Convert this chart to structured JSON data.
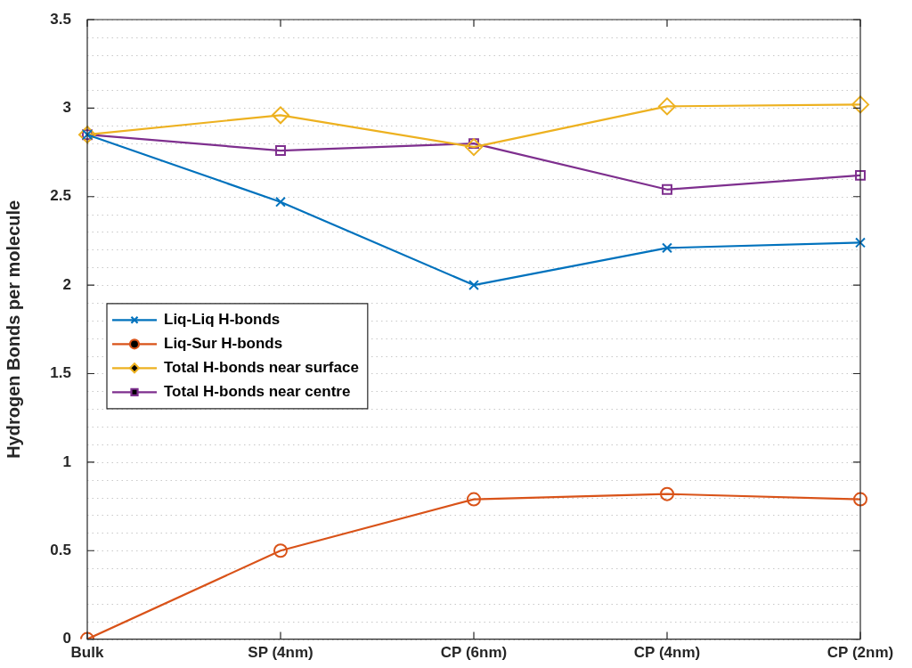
{
  "chart_data": {
    "type": "line",
    "ylabel": "Hydrogen Bonds per molecule",
    "categories": [
      "Bulk",
      "SP (4nm)",
      "CP (6nm)",
      "CP (4nm)",
      "CP (2nm)"
    ],
    "series": [
      {
        "name": "Liq-Liq H-bonds",
        "color": "#0072bd",
        "marker": "cross",
        "values": [
          2.85,
          2.47,
          2.0,
          2.21,
          2.24
        ]
      },
      {
        "name": "Liq-Sur H-bonds",
        "color": "#d95319",
        "marker": "circle",
        "values": [
          0,
          0.5,
          0.79,
          0.82,
          0.79
        ]
      },
      {
        "name": "Total H-bonds near surface",
        "color": "#edb120",
        "marker": "diamond",
        "values": [
          2.85,
          2.96,
          2.78,
          3.01,
          3.02
        ]
      },
      {
        "name": "Total H-bonds near centre",
        "color": "#7e2f8e",
        "marker": "square",
        "values": [
          2.85,
          2.76,
          2.8,
          2.54,
          2.62
        ]
      }
    ],
    "ylim": [
      0,
      3.5
    ],
    "yticks": [
      0,
      0.5,
      1,
      1.5,
      2,
      2.5,
      3,
      3.5
    ],
    "grid": "y",
    "legend": "left",
    "line_style": "solid"
  }
}
